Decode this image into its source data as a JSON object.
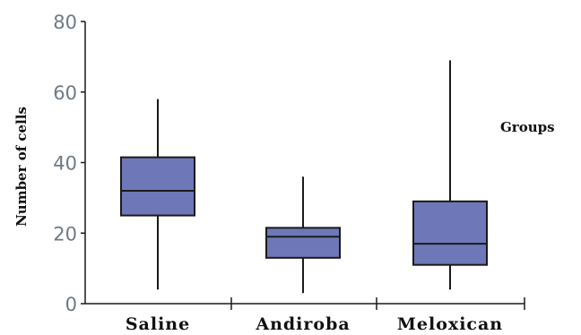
{
  "chart_data": {
    "type": "box",
    "ylabel": "Number of cells",
    "legend_title": "Groups",
    "ylim": [
      0,
      80
    ],
    "yticks": [
      0,
      20,
      40,
      60,
      80
    ],
    "categories": [
      "Saline",
      "Andiroba",
      "Meloxican"
    ],
    "boxes": [
      {
        "category": "Saline",
        "min": 4,
        "q1": 25,
        "median": 32,
        "q3": 41.5,
        "max": 58
      },
      {
        "category": "Andiroba",
        "min": 3,
        "q1": 13,
        "median": 19,
        "q3": 21.5,
        "max": 36
      },
      {
        "category": "Meloxican",
        "min": 4,
        "q1": 11,
        "median": 17,
        "q3": 29,
        "max": 69
      }
    ],
    "box_fill": "#6e78b8",
    "box_stroke": "#1a1a1a",
    "axis_color": "#1a1a1a",
    "grid": false,
    "legend_position": "right"
  }
}
